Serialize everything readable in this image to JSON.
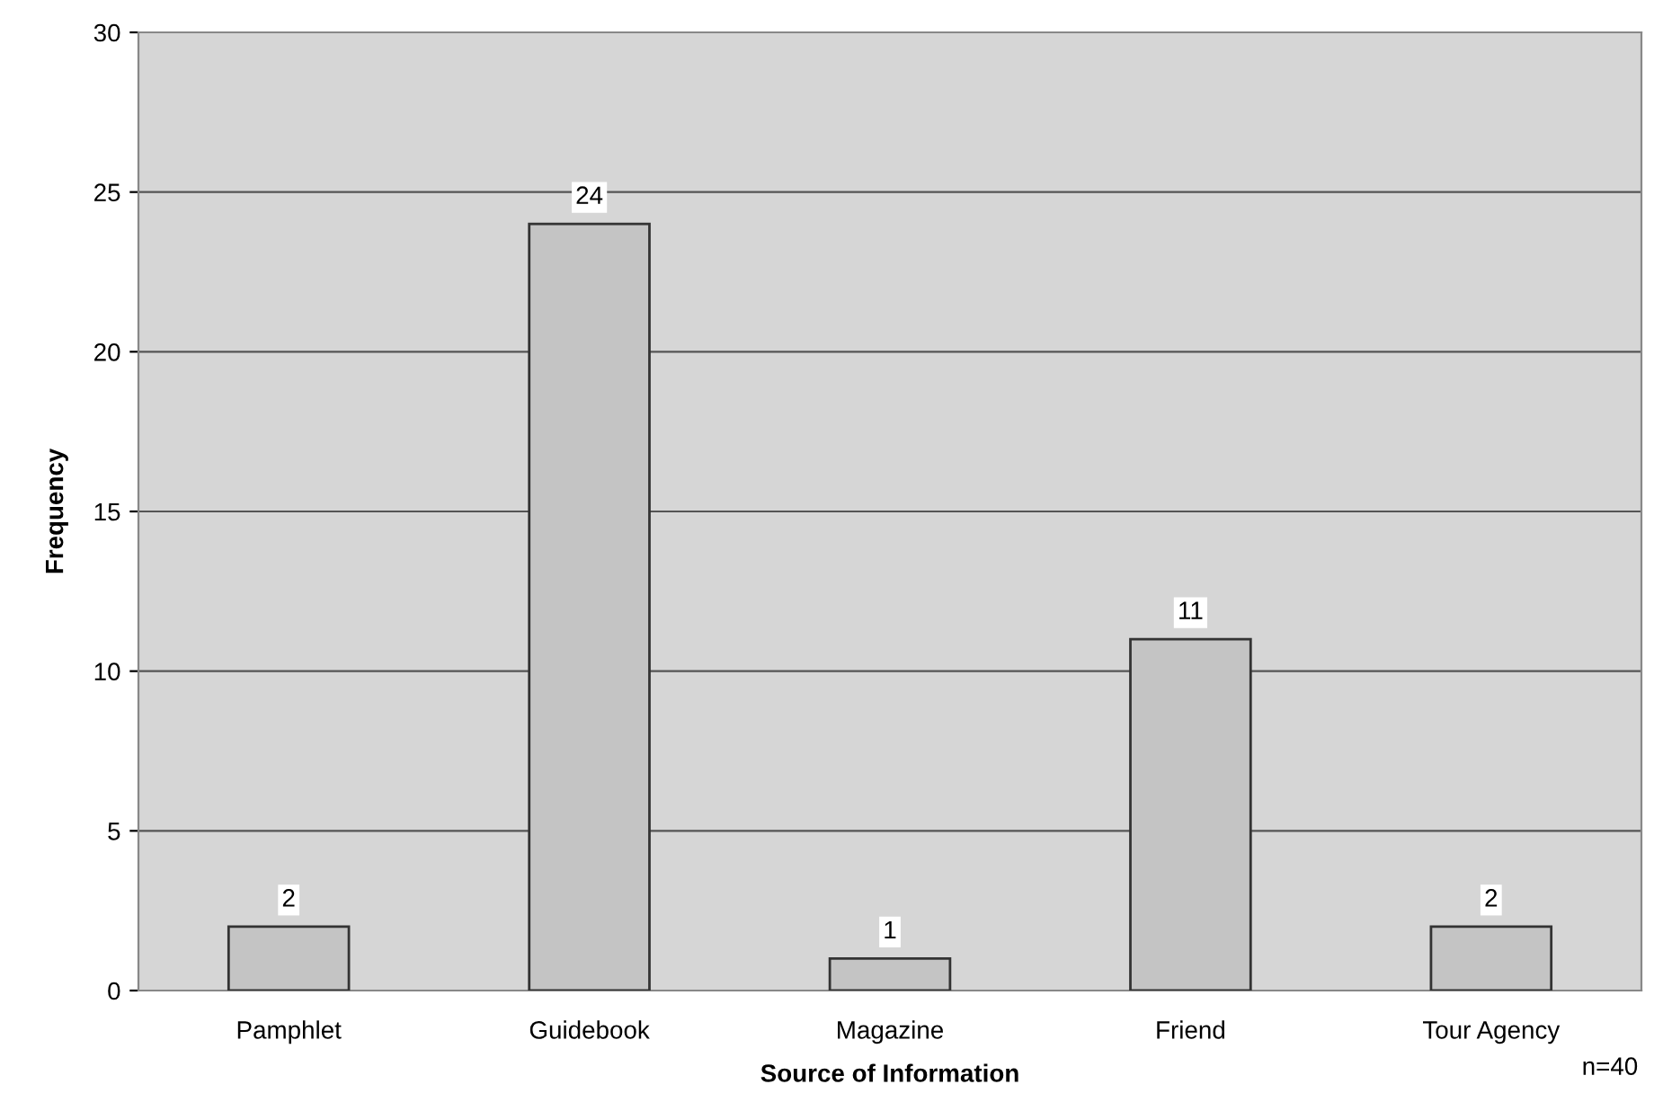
{
  "chart_data": {
    "type": "bar",
    "categories": [
      "Pamphlet",
      "Guidebook",
      "Magazine",
      "Friend",
      "Tour Agency"
    ],
    "values": [
      2,
      24,
      1,
      11,
      2
    ],
    "color": "#c4c4c4",
    "xlabel": "Source of Information",
    "ylabel": "Frequency",
    "ylim": [
      0,
      30
    ],
    "yticks": [
      0,
      5,
      10,
      15,
      20,
      25,
      30
    ],
    "grid": "y",
    "data_labels": true,
    "annotations": [
      "n=40"
    ]
  }
}
